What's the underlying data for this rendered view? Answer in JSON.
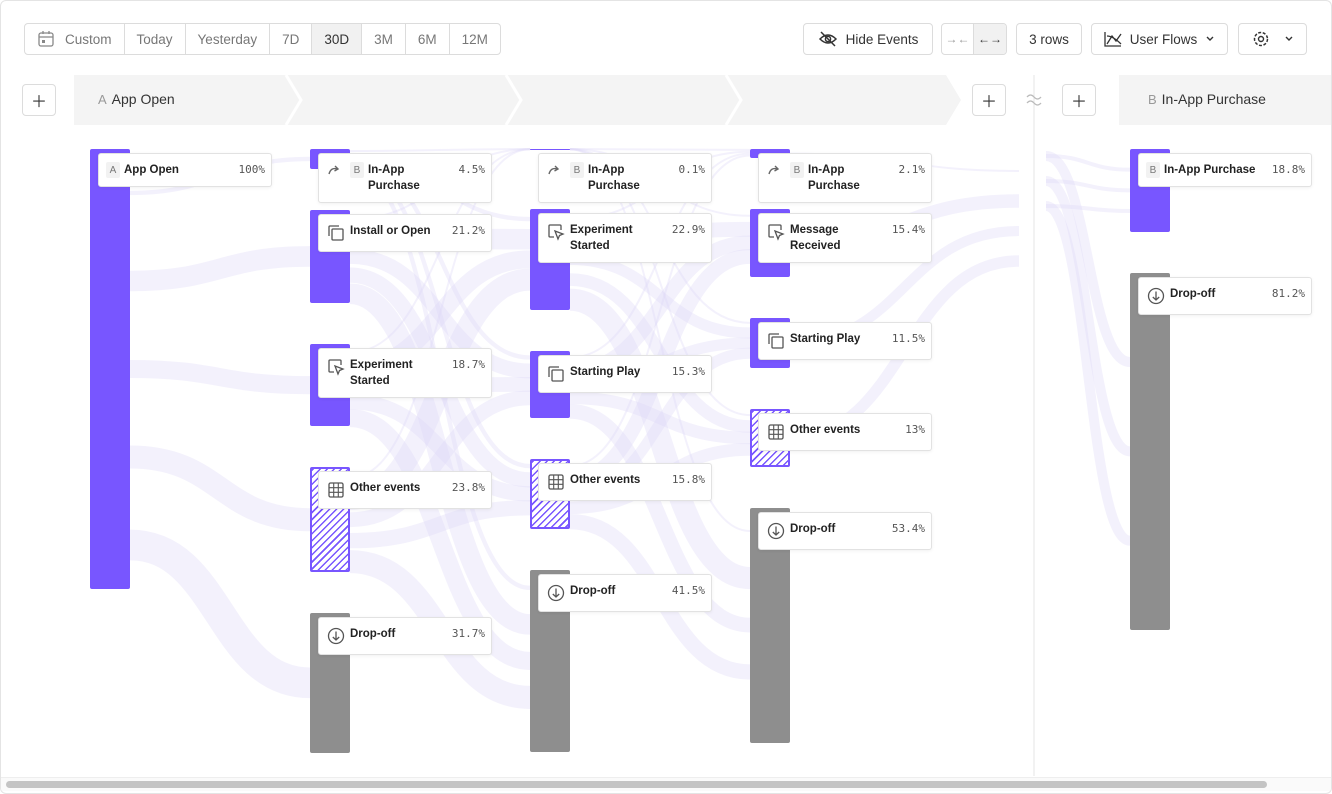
{
  "toolbar": {
    "date_ranges": [
      "Custom",
      "Today",
      "Yesterday",
      "7D",
      "30D",
      "3M",
      "6M",
      "12M"
    ],
    "hide_events": "Hide Events",
    "rows": "3 rows",
    "view": "User Flows"
  },
  "steps": [
    {
      "letter": "A",
      "label": "App Open"
    },
    {
      "letter": "B",
      "label": "In-App Purchase"
    }
  ],
  "columns": [
    {
      "nodes": [
        {
          "letter": "A",
          "label": "App Open",
          "value": 100,
          "value_label": "100%",
          "color": "#7856ff",
          "icon": "none"
        }
      ]
    },
    {
      "nodes": [
        {
          "letter": "B",
          "label": "In-App Purchase",
          "value": 4.5,
          "value_label": "4.5%",
          "color": "#7856ff",
          "icon": "return"
        },
        {
          "label": "Install or Open",
          "value": 21.2,
          "value_label": "21.2%",
          "color": "#7856ff",
          "icon": "copy"
        },
        {
          "label": "Experiment Started",
          "value": 18.7,
          "value_label": "18.7%",
          "color": "#7856ff",
          "icon": "cursor"
        },
        {
          "label": "Other events",
          "value": 23.8,
          "value_label": "23.8%",
          "color": "#7856ff",
          "icon": "grid",
          "pattern": "hatched"
        },
        {
          "label": "Drop-off",
          "value": 31.7,
          "value_label": "31.7%",
          "color": "#8e8e8e",
          "icon": "dropoff"
        }
      ]
    },
    {
      "nodes": [
        {
          "letter": "B",
          "label": "In-App Purchase",
          "value": 0.1,
          "value_label": "0.1%",
          "color": "#7856ff",
          "icon": "return"
        },
        {
          "label": "Experiment Started",
          "value": 22.9,
          "value_label": "22.9%",
          "color": "#7856ff",
          "icon": "cursor"
        },
        {
          "label": "Starting Play",
          "value": 15.3,
          "value_label": "15.3%",
          "color": "#7856ff",
          "icon": "copy"
        },
        {
          "label": "Other events",
          "value": 15.8,
          "value_label": "15.8%",
          "color": "#7856ff",
          "icon": "grid",
          "pattern": "hatched"
        },
        {
          "label": "Drop-off",
          "value": 41.5,
          "value_label": "41.5%",
          "color": "#8e8e8e",
          "icon": "dropoff"
        }
      ]
    },
    {
      "nodes": [
        {
          "letter": "B",
          "label": "In-App Purchase",
          "value": 2.1,
          "value_label": "2.1%",
          "color": "#7856ff",
          "icon": "return"
        },
        {
          "label": "Message Received",
          "value": 15.4,
          "value_label": "15.4%",
          "color": "#7856ff",
          "icon": "cursor"
        },
        {
          "label": "Starting Play",
          "value": 11.5,
          "value_label": "11.5%",
          "color": "#7856ff",
          "icon": "copy"
        },
        {
          "label": "Other events",
          "value": 13,
          "value_label": "13%",
          "color": "#7856ff",
          "icon": "grid",
          "pattern": "hatched"
        },
        {
          "label": "Drop-off",
          "value": 53.4,
          "value_label": "53.4%",
          "color": "#8e8e8e",
          "icon": "dropoff"
        }
      ]
    },
    {
      "nodes": [
        {
          "letter": "B",
          "label": "In-App Purchase",
          "value": 18.8,
          "value_label": "18.8%",
          "color": "#7856ff",
          "icon": "none"
        },
        {
          "label": "Drop-off",
          "value": 81.2,
          "value_label": "81.2%",
          "color": "#8e8e8e",
          "icon": "dropoff"
        }
      ]
    }
  ]
}
